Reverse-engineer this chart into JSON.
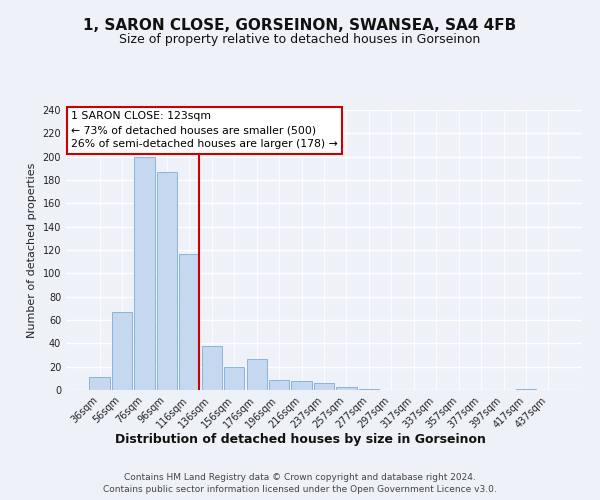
{
  "title": "1, SARON CLOSE, GORSEINON, SWANSEA, SA4 4FB",
  "subtitle": "Size of property relative to detached houses in Gorseinon",
  "xlabel": "Distribution of detached houses by size in Gorseinon",
  "ylabel": "Number of detached properties",
  "bar_labels": [
    "36sqm",
    "56sqm",
    "76sqm",
    "96sqm",
    "116sqm",
    "136sqm",
    "156sqm",
    "176sqm",
    "196sqm",
    "216sqm",
    "237sqm",
    "257sqm",
    "277sqm",
    "297sqm",
    "317sqm",
    "337sqm",
    "357sqm",
    "377sqm",
    "397sqm",
    "417sqm",
    "437sqm"
  ],
  "bar_values": [
    11,
    67,
    200,
    187,
    117,
    38,
    20,
    27,
    9,
    8,
    6,
    3,
    1,
    0,
    0,
    0,
    0,
    0,
    0,
    1,
    0
  ],
  "bar_color": "#c5d8f0",
  "bar_edge_color": "#7bafd4",
  "ylim": [
    0,
    240
  ],
  "yticks": [
    0,
    20,
    40,
    60,
    80,
    100,
    120,
    140,
    160,
    180,
    200,
    220,
    240
  ],
  "property_line_color": "#cc0000",
  "annotation_title": "1 SARON CLOSE: 123sqm",
  "annotation_line1": "← 73% of detached houses are smaller (500)",
  "annotation_line2": "26% of semi-detached houses are larger (178) →",
  "annotation_box_color": "#ffffff",
  "annotation_box_edge": "#cc0000",
  "footer_line1": "Contains HM Land Registry data © Crown copyright and database right 2024.",
  "footer_line2": "Contains public sector information licensed under the Open Government Licence v3.0.",
  "bg_color": "#eef2f8",
  "grid_color": "#ffffff",
  "tick_label_color": "#222222",
  "title_fontsize": 11,
  "subtitle_fontsize": 9,
  "ylabel_fontsize": 8,
  "xlabel_fontsize": 9,
  "tick_fontsize": 7,
  "footer_fontsize": 6.5
}
